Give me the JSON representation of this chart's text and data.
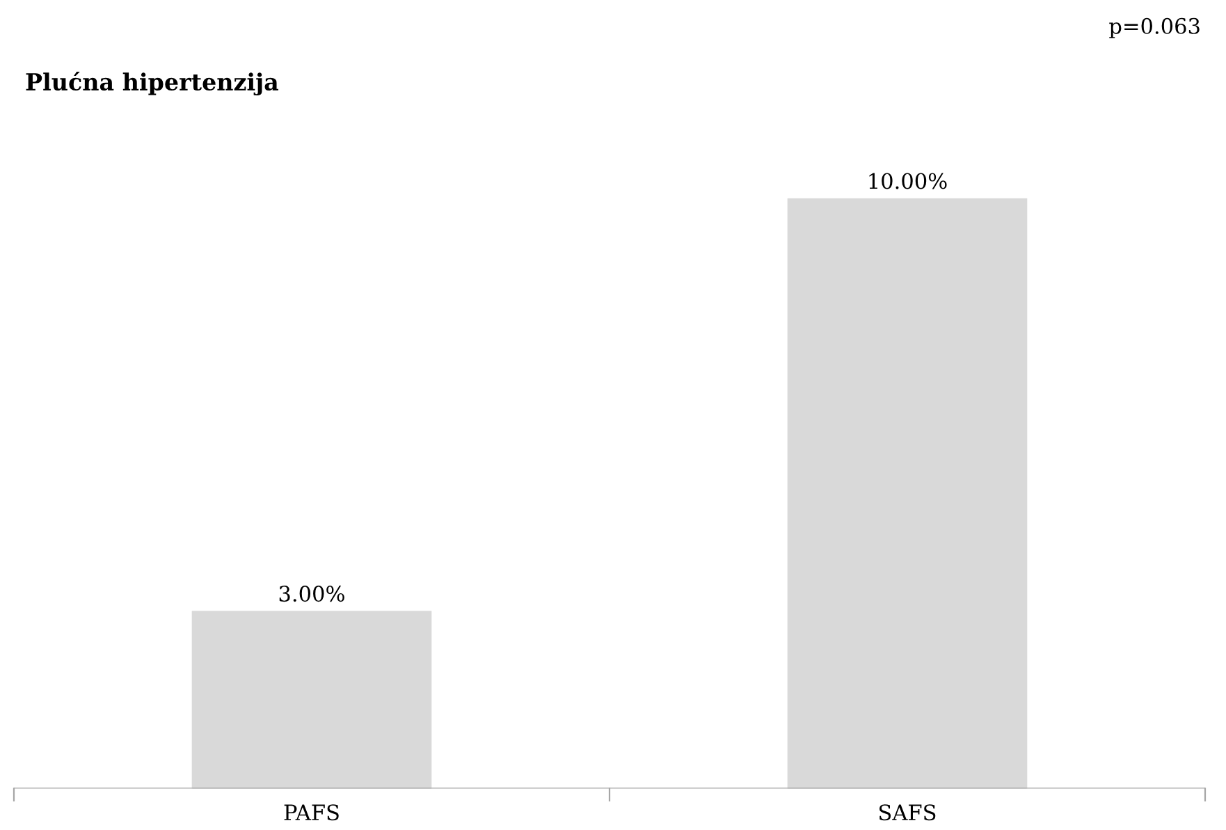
{
  "chart_data": {
    "type": "bar",
    "title": "Plućna hipertenzija",
    "annotations": [
      "p=0.063"
    ],
    "categories": [
      "PAFS",
      "SAFS"
    ],
    "values": [
      3,
      10
    ],
    "value_labels": [
      "3.00%",
      "10.00%"
    ],
    "color": "#d9d9d9",
    "tick_labels": "x",
    "grid": false,
    "legend": false
  }
}
